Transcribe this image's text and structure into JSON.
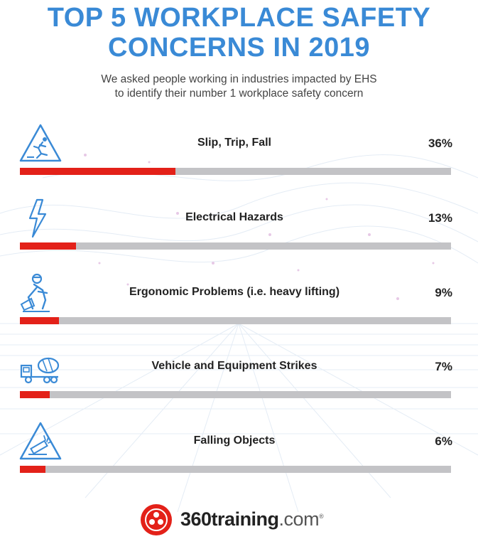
{
  "header": {
    "title_line1": "TOP 5 WORKPLACE SAFETY",
    "title_line2": "CONCERNS IN 2019",
    "subtitle_line1": "We asked people working in industries impacted by EHS",
    "subtitle_line2": "to identify their number 1 workplace safety concern"
  },
  "chart_data": {
    "type": "bar",
    "title": "TOP 5 WORKPLACE SAFETY CONCERNS IN 2019",
    "categories": [
      "Slip, Trip, Fall",
      "Electrical Hazards",
      "Ergonomic Problems (i.e. heavy lifting)",
      "Vehicle and Equipment Strikes",
      "Falling Objects"
    ],
    "values": [
      36,
      13,
      9,
      7,
      6
    ],
    "value_labels": [
      "36%",
      "13%",
      "9%",
      "7%",
      "6%"
    ],
    "icons": [
      "slip-trip-fall-icon",
      "lightning-icon",
      "heavy-lifting-icon",
      "cement-truck-icon",
      "falling-objects-icon"
    ],
    "xlim": [
      0,
      100
    ],
    "unit": "%",
    "colors": {
      "fill": "#e32119",
      "track": "#c3c3c6"
    }
  },
  "footer": {
    "logo_main": "360training",
    "logo_domain": ".com",
    "logo_mark": "®"
  },
  "colors": {
    "title": "#3a8ad6",
    "accent": "#e32119",
    "icon": "#3a8ad6"
  }
}
